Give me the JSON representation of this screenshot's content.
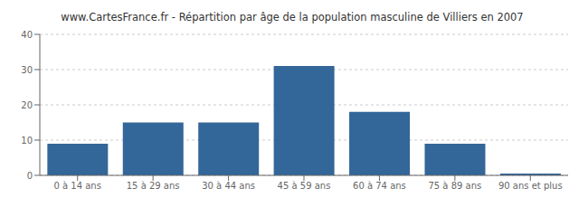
{
  "chart_data": {
    "type": "bar",
    "title": "www.CartesFrance.fr - Répartition par âge de la population masculine de Villiers en 2007",
    "categories": [
      "0 à 14 ans",
      "15 à 29 ans",
      "30 à 44 ans",
      "45 à 59 ans",
      "60 à 74 ans",
      "75 à 89 ans",
      "90 ans et plus"
    ],
    "values": [
      9,
      15,
      15,
      31,
      18,
      9,
      0.5
    ],
    "color": "#336699",
    "ylim": [
      0,
      40
    ],
    "yticks": [
      0,
      10,
      20,
      30,
      40
    ],
    "grid": true
  }
}
